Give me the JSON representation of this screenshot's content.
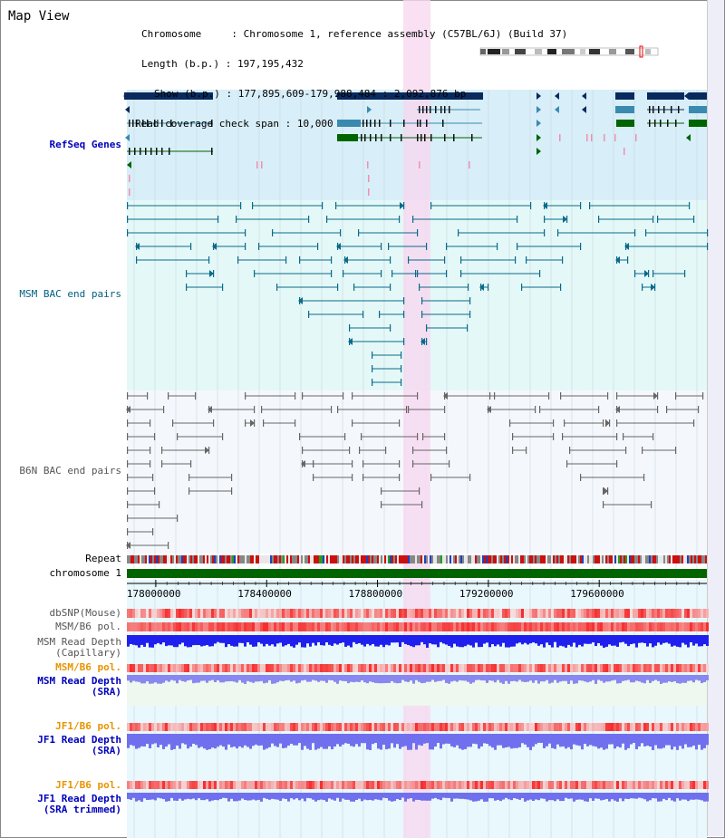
{
  "title": "Map View",
  "info": {
    "chromosome_label": "Chromosome",
    "chromosome_value": "Chromosome 1, reference assembly (C57BL/6J) (Build 37)",
    "length_label": "Length (b.p.)",
    "length_value": "197,195,432",
    "show_label": "Show (b.p.)",
    "show_value": "177,895,609-179,988,484 : 2,092,876 bp",
    "coverage_label": "Read coverage check span",
    "coverage_value": "10,000"
  },
  "tracks": {
    "refseq": "RefSeq Genes",
    "msm_bac": "MSM BAC end pairs",
    "b6n_bac": "B6N BAC end pairs",
    "repeat": "Repeat",
    "chromosome": "chromosome 1",
    "dbsnp": "dbSNP(Mouse)",
    "msm_b6_pol": "MSM/B6 pol.",
    "msm_depth_cap_1": "MSM Read Depth",
    "msm_depth_cap_2": "(Capillary)",
    "msm_b6_pol_2": "MSM/B6 pol.",
    "msm_depth_sra_1": "MSM Read Depth",
    "msm_depth_sra_2": "(SRA)",
    "jf1_b6_pol": "JF1/B6 pol.",
    "jf1_depth_sra_1": "JF1 Read Depth",
    "jf1_depth_sra_2": "(SRA)",
    "jf1_b6_pol_2": "JF1/B6 pol.",
    "jf1_depth_trim_1": "JF1 Read Depth",
    "jf1_depth_trim_2": "(SRA trimmed)"
  },
  "axis": {
    "ticks": [
      "178000000",
      "178400000",
      "178800000",
      "179200000",
      "179600000"
    ],
    "tick_values": [
      178000000,
      178400000,
      178800000,
      179200000,
      179600000
    ],
    "range": [
      177895609,
      179988484
    ]
  },
  "colors": {
    "refseq_bg": "#d8eef8",
    "msm_bg": "#e4f8f8",
    "b6n_bg": "#f4f8fc",
    "highlight": "#f8d8f0",
    "gene_dark": "#0a2a5e",
    "gene_mid": "#3a8ab0",
    "gene_green": "#006400",
    "msm_bac": "#0a6a8a",
    "b6n_bac": "#666666",
    "chromosome_bar": "#006400",
    "depth_blue": "#2020ee",
    "depth_light_blue": "#7070ee",
    "pol_red": "#ee3030"
  }
}
